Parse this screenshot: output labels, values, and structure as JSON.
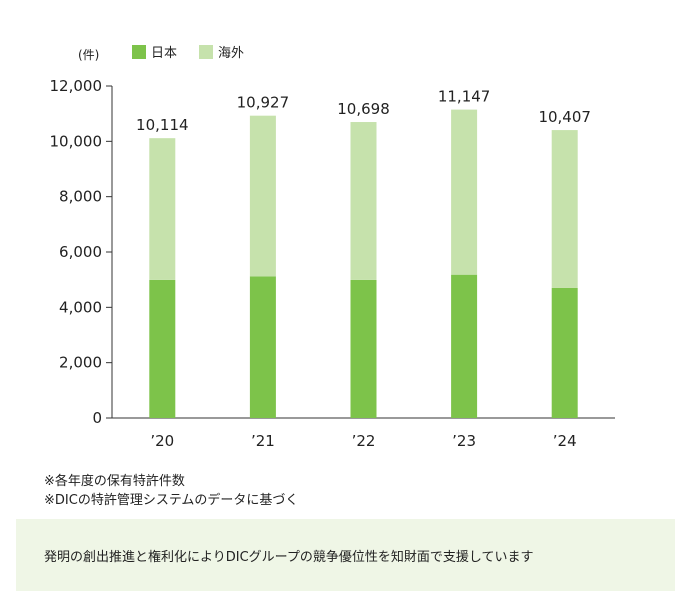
{
  "unit_label": "(件)",
  "legend": [
    {
      "label": "日本",
      "color": "#7dc34a"
    },
    {
      "label": "海外",
      "color": "#c6e2ac"
    }
  ],
  "chart_data": {
    "type": "bar",
    "stacked": true,
    "categories": [
      "’20",
      "’21",
      "’22",
      "’23",
      "’24"
    ],
    "series": [
      {
        "name": "日本",
        "values": [
          4990,
          5120,
          4990,
          5180,
          4700
        ]
      },
      {
        "name": "海外",
        "values": [
          5124,
          5807,
          5708,
          5967,
          5707
        ]
      }
    ],
    "totals": [
      10114,
      10927,
      10698,
      11147,
      10407
    ],
    "total_labels": [
      "10,114",
      "10,927",
      "10,698",
      "11,147",
      "10,407"
    ],
    "yticks": [
      "0",
      "2,000",
      "4,000",
      "6,000",
      "8,000",
      "10,000",
      "12,000"
    ],
    "ylim": [
      0,
      12000
    ],
    "grid": false,
    "legend_position": "top-left"
  },
  "notes": [
    "※各年度の保有特許件数",
    "※DICの特許管理システムのデータに基づく"
  ],
  "message": "発明の創出推進と権利化によりDICグループの競争優位性を知財面で支援しています"
}
